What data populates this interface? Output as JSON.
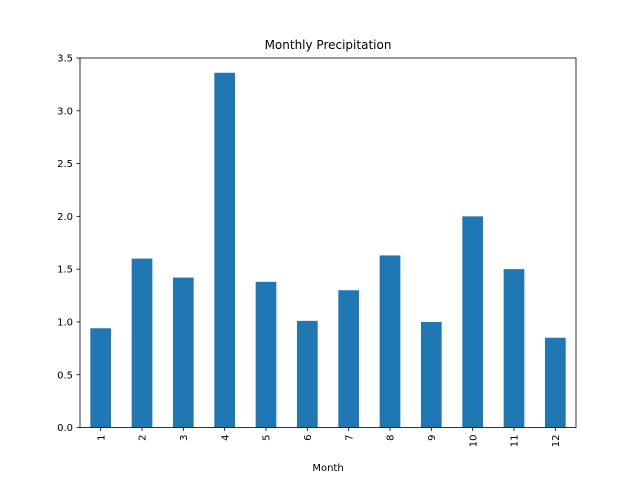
{
  "chart_data": {
    "type": "bar",
    "title": "Monthly Precipitation",
    "xlabel": "Month",
    "ylabel": "",
    "categories": [
      "1",
      "2",
      "3",
      "4",
      "5",
      "6",
      "7",
      "8",
      "9",
      "10",
      "11",
      "12"
    ],
    "values": [
      0.94,
      1.6,
      1.42,
      3.36,
      1.38,
      1.01,
      1.3,
      1.63,
      1.0,
      2.0,
      1.5,
      0.85
    ],
    "ylim": [
      0,
      3.5
    ],
    "yticks": [
      "0.0",
      "0.5",
      "1.0",
      "1.5",
      "2.0",
      "2.5",
      "3.0",
      "3.5"
    ],
    "bar_color": "#1f77b4",
    "grid": false,
    "legend": "none"
  }
}
